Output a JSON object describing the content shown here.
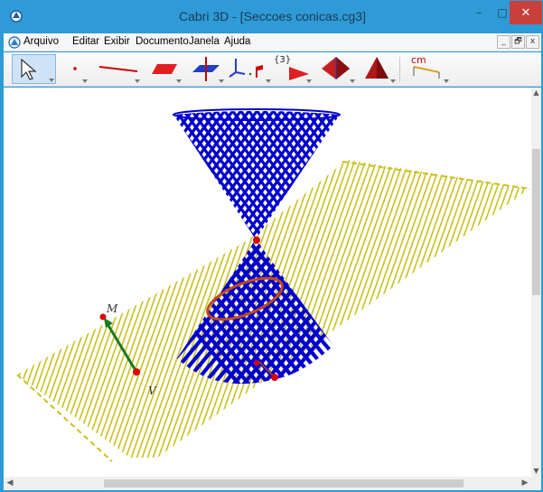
{
  "window": {
    "title": "Cabri 3D - [Seccoes conicas.cg3]",
    "controls": {
      "minimize": "–",
      "maximize": "□",
      "close": "✕"
    }
  },
  "menu": {
    "items": [
      "Arquivo",
      "Editar",
      "Exibir",
      "Documento",
      "Janela",
      "Ajuda"
    ],
    "mdi_controls": [
      "_",
      "🗗",
      "x"
    ]
  },
  "toolbar": {
    "tools": [
      {
        "name": "pointer",
        "icon": "arrow-pointer-icon",
        "selected": true
      },
      {
        "name": "points",
        "icon": "point-icon"
      },
      {
        "name": "lines",
        "icon": "line-icon"
      },
      {
        "name": "surfaces",
        "icon": "plane-icon"
      },
      {
        "name": "relative-constructions",
        "icon": "perpendicular-icon"
      },
      {
        "name": "transformations",
        "icon": "axes-icon"
      },
      {
        "name": "regular-polygons",
        "icon": "polygon-icon"
      },
      {
        "name": "polyhedra",
        "icon": "pyramid-icon"
      },
      {
        "name": "regular-polyhedra",
        "icon": "tetrahedron-icon"
      },
      {
        "name": "measurement",
        "icon": "ruler-icon"
      }
    ],
    "set_label": "{3}",
    "measure_label": "cm"
  },
  "scene": {
    "points": {
      "upper": "M",
      "lower": "V"
    },
    "colors": {
      "cone": "#0000cc",
      "plane": "#c8c020",
      "section": "#c04a1a",
      "vector": "#1a7a1a",
      "point": "#dd0000"
    }
  }
}
